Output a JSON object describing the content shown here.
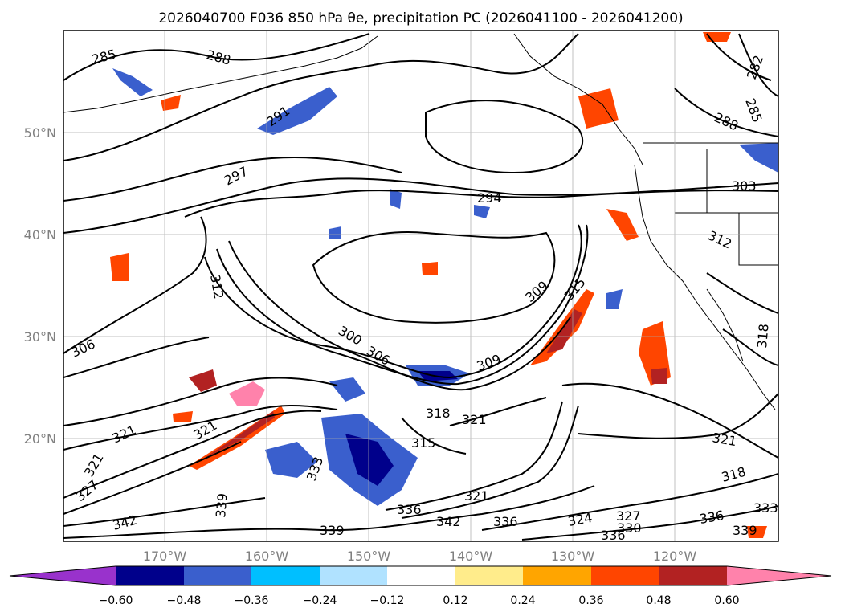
{
  "title": "2026040700 F036 850 hPa θe, precipitation PC (2026041100 - 2026041200)",
  "lat_labels": [
    "50°N",
    "40°N",
    "30°N",
    "20°N"
  ],
  "lon_labels": [
    "170°W",
    "160°W",
    "150°W",
    "140°W",
    "130°W",
    "120°W"
  ],
  "colorbar": {
    "ticks": [
      "−0.60",
      "−0.48",
      "−0.36",
      "−0.24",
      "−0.12",
      "0.12",
      "0.24",
      "0.36",
      "0.48",
      "0.60"
    ],
    "colors": [
      "#9932cc",
      "#00008b",
      "#3a5fcd",
      "#00bfff",
      "#b0e2ff",
      "#ffffff",
      "#ffec8b",
      "#ffa500",
      "#ff4500",
      "#b22222",
      "#ff82ab"
    ]
  },
  "contour_labels": [
    "285",
    "288",
    "291",
    "297",
    "294",
    "303",
    "312",
    "309",
    "315",
    "306",
    "312",
    "300",
    "306",
    "309",
    "318",
    "321",
    "321",
    "315",
    "321",
    "333",
    "321",
    "327",
    "339",
    "342",
    "336",
    "339",
    "342",
    "321",
    "336",
    "324",
    "327",
    "330",
    "336",
    "336",
    "339",
    "333",
    "321",
    "318",
    "288",
    "282",
    "285",
    "318"
  ]
}
